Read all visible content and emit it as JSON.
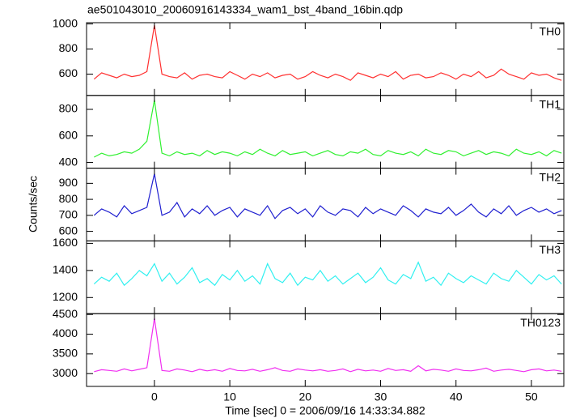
{
  "chart_data": {
    "type": "line",
    "title": "ae501043010_20060916143334_wam1_bst_4band_16bin.qdp",
    "xlabel": "Time [sec] 0 = 2006/09/16 14:33:34.882",
    "ylabel": "Counts/sec",
    "x": [
      -8,
      -7,
      -6,
      -5,
      -4,
      -3,
      -2,
      -1,
      0,
      1,
      2,
      3,
      4,
      5,
      6,
      7,
      8,
      9,
      10,
      11,
      12,
      13,
      14,
      15,
      16,
      17,
      18,
      19,
      20,
      21,
      22,
      23,
      24,
      25,
      26,
      27,
      28,
      29,
      30,
      31,
      32,
      33,
      34,
      35,
      36,
      37,
      38,
      39,
      40,
      41,
      42,
      43,
      44,
      45,
      46,
      47,
      48,
      49,
      50,
      51,
      52,
      53,
      54
    ],
    "xlim": [
      -9,
      54.3
    ],
    "xticks": [
      0,
      10,
      20,
      30,
      40,
      50
    ],
    "panels": [
      {
        "name": "TH0",
        "color": "#ff3030",
        "ylim": [
          430,
          1010
        ],
        "yticks": [
          600,
          800,
          1000
        ],
        "values": [
          560,
          610,
          590,
          570,
          600,
          580,
          590,
          620,
          990,
          600,
          580,
          570,
          610,
          560,
          590,
          600,
          580,
          570,
          620,
          590,
          560,
          600,
          580,
          610,
          570,
          590,
          600,
          560,
          580,
          620,
          590,
          570,
          600,
          580,
          550,
          610,
          590,
          570,
          600,
          580,
          620,
          560,
          590,
          600,
          570,
          580,
          610,
          590,
          560,
          600,
          580,
          620,
          570,
          590,
          640,
          600,
          580,
          560,
          610,
          590,
          600,
          570,
          550
        ]
      },
      {
        "name": "TH1",
        "color": "#30f030",
        "ylim": [
          357,
          905
        ],
        "yticks": [
          400,
          600,
          800
        ],
        "values": [
          440,
          470,
          450,
          460,
          480,
          470,
          500,
          560,
          870,
          470,
          450,
          480,
          460,
          470,
          450,
          490,
          460,
          480,
          470,
          450,
          480,
          460,
          500,
          470,
          450,
          490,
          460,
          470,
          480,
          450,
          470,
          490,
          460,
          450,
          480,
          470,
          500,
          460,
          450,
          490,
          470,
          460,
          480,
          450,
          500,
          470,
          460,
          490,
          480,
          450,
          470,
          490,
          460,
          480,
          470,
          450,
          500,
          470,
          460,
          480,
          450,
          490,
          470
        ]
      },
      {
        "name": "TH2",
        "color": "#2020d0",
        "ylim": [
          540,
          995
        ],
        "yticks": [
          600,
          700,
          800,
          900
        ],
        "values": [
          700,
          740,
          720,
          690,
          760,
          710,
          730,
          750,
          960,
          700,
          720,
          780,
          690,
          740,
          710,
          760,
          700,
          730,
          750,
          690,
          740,
          720,
          700,
          760,
          680,
          730,
          750,
          710,
          740,
          690,
          760,
          720,
          700,
          740,
          730,
          690,
          750,
          710,
          740,
          720,
          700,
          760,
          730,
          690,
          740,
          720,
          710,
          750,
          700,
          730,
          770,
          720,
          690,
          740,
          710,
          760,
          700,
          730,
          750,
          720,
          740,
          710,
          730
        ]
      },
      {
        "name": "TH3",
        "color": "#30f0f0",
        "ylim": [
          1081,
          1618
        ],
        "yticks": [
          1200,
          1400,
          1600
        ],
        "values": [
          1300,
          1350,
          1320,
          1380,
          1290,
          1340,
          1400,
          1360,
          1450,
          1320,
          1380,
          1300,
          1350,
          1420,
          1310,
          1340,
          1290,
          1370,
          1330,
          1400,
          1320,
          1360,
          1300,
          1450,
          1340,
          1310,
          1380,
          1290,
          1350,
          1330,
          1400,
          1320,
          1360,
          1300,
          1340,
          1380,
          1310,
          1350,
          1420,
          1330,
          1300,
          1370,
          1340,
          1460,
          1320,
          1350,
          1290,
          1380,
          1340,
          1310,
          1360,
          1330,
          1300,
          1380,
          1340,
          1320,
          1400,
          1350,
          1300,
          1370,
          1330,
          1360,
          1300
        ]
      },
      {
        "name": "TH0123",
        "color": "#f030f0",
        "ylim": [
          2676,
          4520
        ],
        "yticks": [
          3000,
          3500,
          4000,
          4500
        ],
        "values": [
          3050,
          3100,
          3080,
          3060,
          3120,
          3070,
          3110,
          3150,
          4400,
          3080,
          3060,
          3120,
          3090,
          3050,
          3110,
          3070,
          3100,
          3060,
          3130,
          3080,
          3070,
          3110,
          3060,
          3100,
          3150,
          3080,
          3060,
          3120,
          3090,
          3070,
          3100,
          3060,
          3080,
          3120,
          3050,
          3110,
          3070,
          3090,
          3060,
          3130,
          3080,
          3100,
          3060,
          3200,
          3070,
          3110,
          3090,
          3060,
          3120,
          3080,
          3070,
          3100,
          3140,
          3060,
          3090,
          3110,
          3080,
          3050,
          3100,
          3120,
          3070,
          3090,
          3060
        ]
      }
    ]
  }
}
